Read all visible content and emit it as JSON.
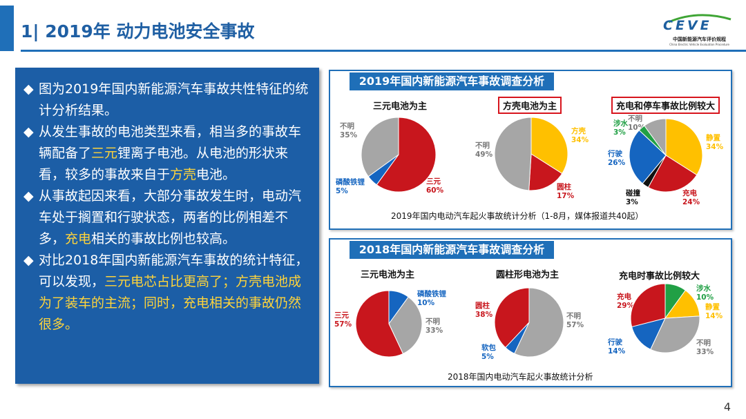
{
  "header": {
    "title": "1| 2019年 动力电池安全事故"
  },
  "logo": {
    "main": "CEVE",
    "cn": "中国新能源汽车评价规程",
    "en": "China Electric Vehicle Evaluation Procedure"
  },
  "bullets": [
    [
      {
        "t": "图为2019年国内新能源汽车事故共性特征的统计分析结果。"
      }
    ],
    [
      {
        "t": "从发生事故的电池类型来看，相当多的事故车辆配备了"
      },
      {
        "t": "三元",
        "h": true
      },
      {
        "t": "锂离子电池。从电池的形状来看，较多的事故来自于"
      },
      {
        "t": "方壳",
        "h": true
      },
      {
        "t": "电池。"
      }
    ],
    [
      {
        "t": "从事故起因来看，大部分事故发生时，电动汽车处于搁置和行驶状态，两者的比例相差不多，"
      },
      {
        "t": "充电",
        "h": true
      },
      {
        "t": "相关的事故比例也较高。"
      }
    ],
    [
      {
        "t": "对比2018年国内新能源汽车事故的统计特征，可以发现，"
      },
      {
        "t": "三元电芯占比更高了；方壳电池成为了装车的主流；同时，充电相关的事故仍然很多。",
        "h": true
      }
    ]
  ],
  "panel2019": {
    "heading": "2019年国内新能源汽车事故调查分析",
    "footnote": "2019年国内电动汽车起火事故统计分析（1-8月，媒体报道共40起）"
  },
  "panel2018": {
    "heading": "2018年国内新能源汽车事故调查分析",
    "footnote": "2018年国内电动汽车起火事故统计分析"
  },
  "chart_data": [
    {
      "type": "pie",
      "title": "三元电池为主",
      "slices": [
        {
          "label": "三元",
          "value": 60,
          "color": "#c8161d"
        },
        {
          "label": "磷酸铁锂",
          "value": 5,
          "color": "#1565c0"
        },
        {
          "label": "不明",
          "value": 35,
          "color": "#a6a6a6"
        }
      ]
    },
    {
      "type": "pie",
      "title": "方壳电池为主",
      "slices": [
        {
          "label": "方壳",
          "value": 34,
          "color": "#ffc000"
        },
        {
          "label": "圆柱",
          "value": 17,
          "color": "#c8161d"
        },
        {
          "label": "不明",
          "value": 49,
          "color": "#a6a6a6"
        }
      ]
    },
    {
      "type": "pie",
      "title": "充电和停车事故比例较大",
      "slices": [
        {
          "label": "静置",
          "value": 34,
          "color": "#ffc000"
        },
        {
          "label": "充电",
          "value": 24,
          "color": "#c8161d"
        },
        {
          "label": "碰撞",
          "value": 3,
          "color": "#111111"
        },
        {
          "label": "行驶",
          "value": 26,
          "color": "#1565c0"
        },
        {
          "label": "涉水",
          "value": 3,
          "color": "#21a045"
        },
        {
          "label": "不明",
          "value": 10,
          "color": "#a6a6a6"
        }
      ]
    },
    {
      "type": "pie",
      "title": "三元电池为主",
      "slices": [
        {
          "label": "磷酸铁锂",
          "value": 10,
          "color": "#1565c0"
        },
        {
          "label": "不明",
          "value": 33,
          "color": "#a6a6a6"
        },
        {
          "label": "三元",
          "value": 57,
          "color": "#c8161d"
        }
      ]
    },
    {
      "type": "pie",
      "title": "圆柱形电池为主",
      "slices": [
        {
          "label": "不明",
          "value": 57,
          "color": "#a6a6a6"
        },
        {
          "label": "软包",
          "value": 5,
          "color": "#1565c0"
        },
        {
          "label": "圆柱",
          "value": 38,
          "color": "#c8161d"
        }
      ]
    },
    {
      "type": "pie",
      "title": "充电时事故比例较大",
      "slices": [
        {
          "label": "涉水",
          "value": 10,
          "color": "#21a045"
        },
        {
          "label": "静置",
          "value": 14,
          "color": "#ffc000"
        },
        {
          "label": "不明",
          "value": 33,
          "color": "#a6a6a6"
        },
        {
          "label": "行驶",
          "value": 14,
          "color": "#1565c0"
        },
        {
          "label": "充电",
          "value": 29,
          "color": "#c8161d"
        }
      ]
    }
  ],
  "page_number": "4"
}
